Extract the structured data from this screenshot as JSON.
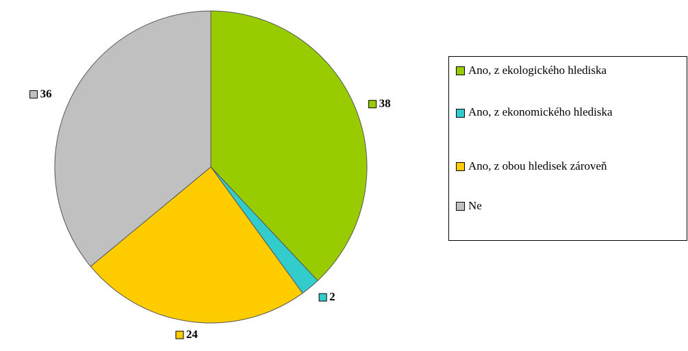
{
  "chart_data": {
    "type": "pie",
    "categories": [
      "Ano, z ekologického hlediska",
      "Ano, z ekonomického hlediska",
      "Ano, z obou hledisek zároveň",
      "Ne"
    ],
    "values": [
      38,
      2,
      24,
      36
    ],
    "colors": [
      "#99cc00",
      "#33cccc",
      "#ffcc00",
      "#c0c0c0"
    ],
    "legend": "right"
  }
}
